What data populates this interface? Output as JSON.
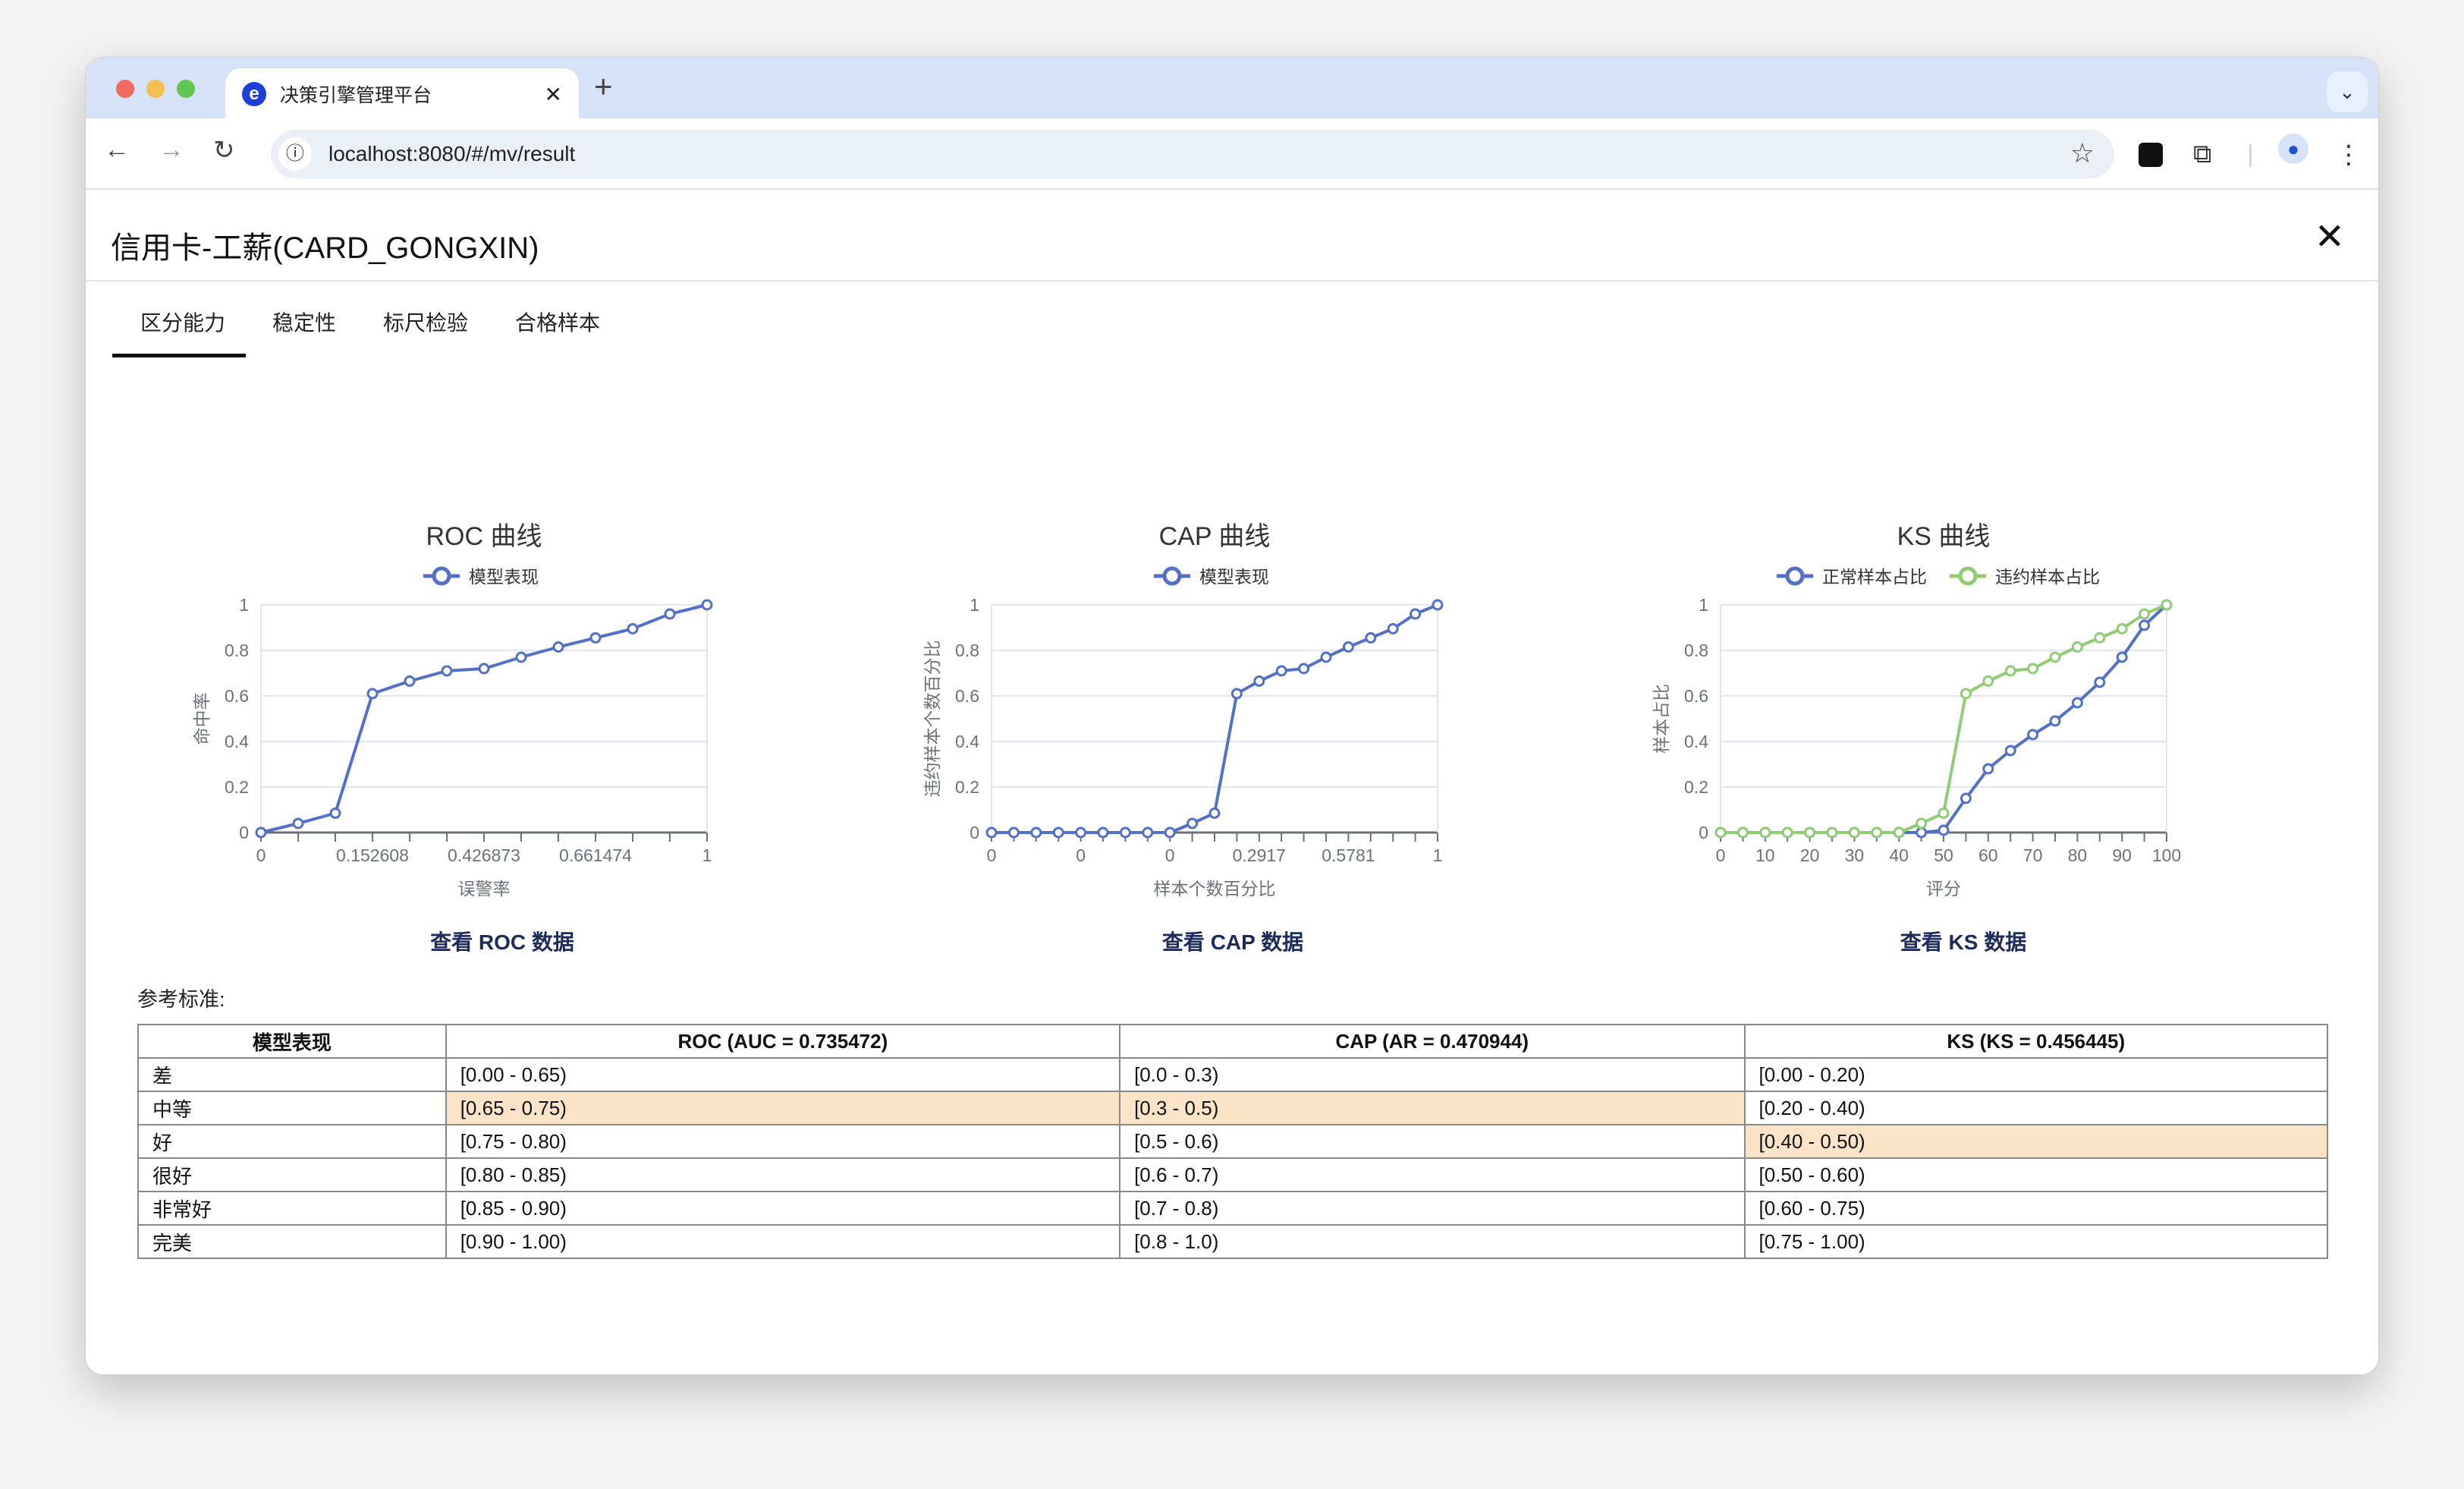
{
  "browser": {
    "tab_title": "决策引擎管理平台",
    "url": "localhost:8080/#/mv/result",
    "icons": [
      "back-icon",
      "forward-icon",
      "reload-icon",
      "info-icon",
      "star-icon",
      "extension-icon",
      "puzzle-icon",
      "profile-icon",
      "menu-icon",
      "chevron-down-icon"
    ]
  },
  "page": {
    "title": "信用卡-工薪(CARD_GONGXIN)",
    "tabs": [
      "区分能力",
      "稳定性",
      "标尺检验",
      "合格样本"
    ],
    "active_tab": 0,
    "links": [
      "查看 ROC 数据",
      "查看 CAP 数据",
      "查看 KS 数据"
    ],
    "reference_label": "参考标准:"
  },
  "table": {
    "headers": [
      "模型表现",
      "ROC (AUC = 0.735472)",
      "CAP (AR = 0.470944)",
      "KS (KS = 0.456445)"
    ],
    "rows": [
      [
        "差",
        "[0.00 - 0.65)",
        "[0.0 - 0.3)",
        "[0.00 - 0.20)"
      ],
      [
        "中等",
        "[0.65 - 0.75)",
        "[0.3 - 0.5)",
        "[0.20 - 0.40)"
      ],
      [
        "好",
        "[0.75 - 0.80)",
        "[0.5 - 0.6)",
        "[0.40 - 0.50)"
      ],
      [
        "很好",
        "[0.80 - 0.85)",
        "[0.6 - 0.7)",
        "[0.50 - 0.60)"
      ],
      [
        "非常好",
        "[0.85 - 0.90)",
        "[0.7 - 0.8)",
        "[0.60 - 0.75)"
      ],
      [
        "完美",
        "[0.90 - 1.00)",
        "[0.8 - 1.0)",
        "[0.75 - 1.00)"
      ]
    ],
    "highlighted": {
      "ROC": "中等",
      "CAP": "中等",
      "KS": "好"
    },
    "highlight_color": "#fbe4c7"
  },
  "chart_data": [
    {
      "type": "line",
      "title": "ROC 曲线",
      "xlabel": "误警率",
      "ylabel": "命中率",
      "ylim": [
        0,
        1
      ],
      "grid": true,
      "legend": "top",
      "x_tick_labels": [
        "0",
        "",
        "",
        "0.152608",
        "",
        "",
        "0.426873",
        "",
        "",
        "0.661474",
        "",
        "",
        "1"
      ],
      "series": [
        {
          "name": "模型表现",
          "color": "#5470c6",
          "values": [
            0,
            0.04,
            0.085,
            0.61,
            0.665,
            0.71,
            0.72,
            0.77,
            0.815,
            0.855,
            0.895,
            0.96,
            1
          ]
        }
      ]
    },
    {
      "type": "line",
      "title": "CAP 曲线",
      "xlabel": "样本个数百分比",
      "ylabel": "违约样本个数百分比",
      "ylim": [
        0,
        1
      ],
      "grid": true,
      "legend": "top",
      "x_tick_labels": [
        "0",
        "",
        "",
        "",
        "0",
        "",
        "",
        "",
        "0",
        "",
        "",
        "",
        "0.2917",
        "",
        "",
        "",
        "0.5781",
        "",
        "",
        "",
        "1"
      ],
      "series": [
        {
          "name": "模型表现",
          "color": "#5470c6",
          "values": [
            0,
            0,
            0,
            0,
            0,
            0,
            0,
            0,
            0,
            0.04,
            0.085,
            0.61,
            0.665,
            0.71,
            0.72,
            0.77,
            0.815,
            0.855,
            0.895,
            0.96,
            1
          ]
        }
      ]
    },
    {
      "type": "line",
      "title": "KS 曲线",
      "xlabel": "评分",
      "ylabel": "样本占比",
      "ylim": [
        0,
        1
      ],
      "grid": true,
      "legend": "top",
      "x_tick_labels": [
        "0",
        "",
        "10",
        "",
        "20",
        "",
        "30",
        "",
        "40",
        "",
        "50",
        "",
        "60",
        "",
        "70",
        "",
        "80",
        "",
        "90",
        "",
        "100"
      ],
      "series": [
        {
          "name": "正常样本占比",
          "color": "#5470c6",
          "values": [
            0,
            0,
            0,
            0,
            0,
            0,
            0,
            0,
            0,
            0,
            0.01,
            0.15,
            0.28,
            0.36,
            0.43,
            0.49,
            0.57,
            0.66,
            0.77,
            0.91,
            1
          ]
        },
        {
          "name": "违约样本占比",
          "color": "#91cc75",
          "values": [
            0,
            0,
            0,
            0,
            0,
            0,
            0,
            0,
            0,
            0.04,
            0.085,
            0.61,
            0.665,
            0.71,
            0.72,
            0.77,
            0.815,
            0.855,
            0.895,
            0.96,
            1
          ]
        }
      ]
    }
  ]
}
